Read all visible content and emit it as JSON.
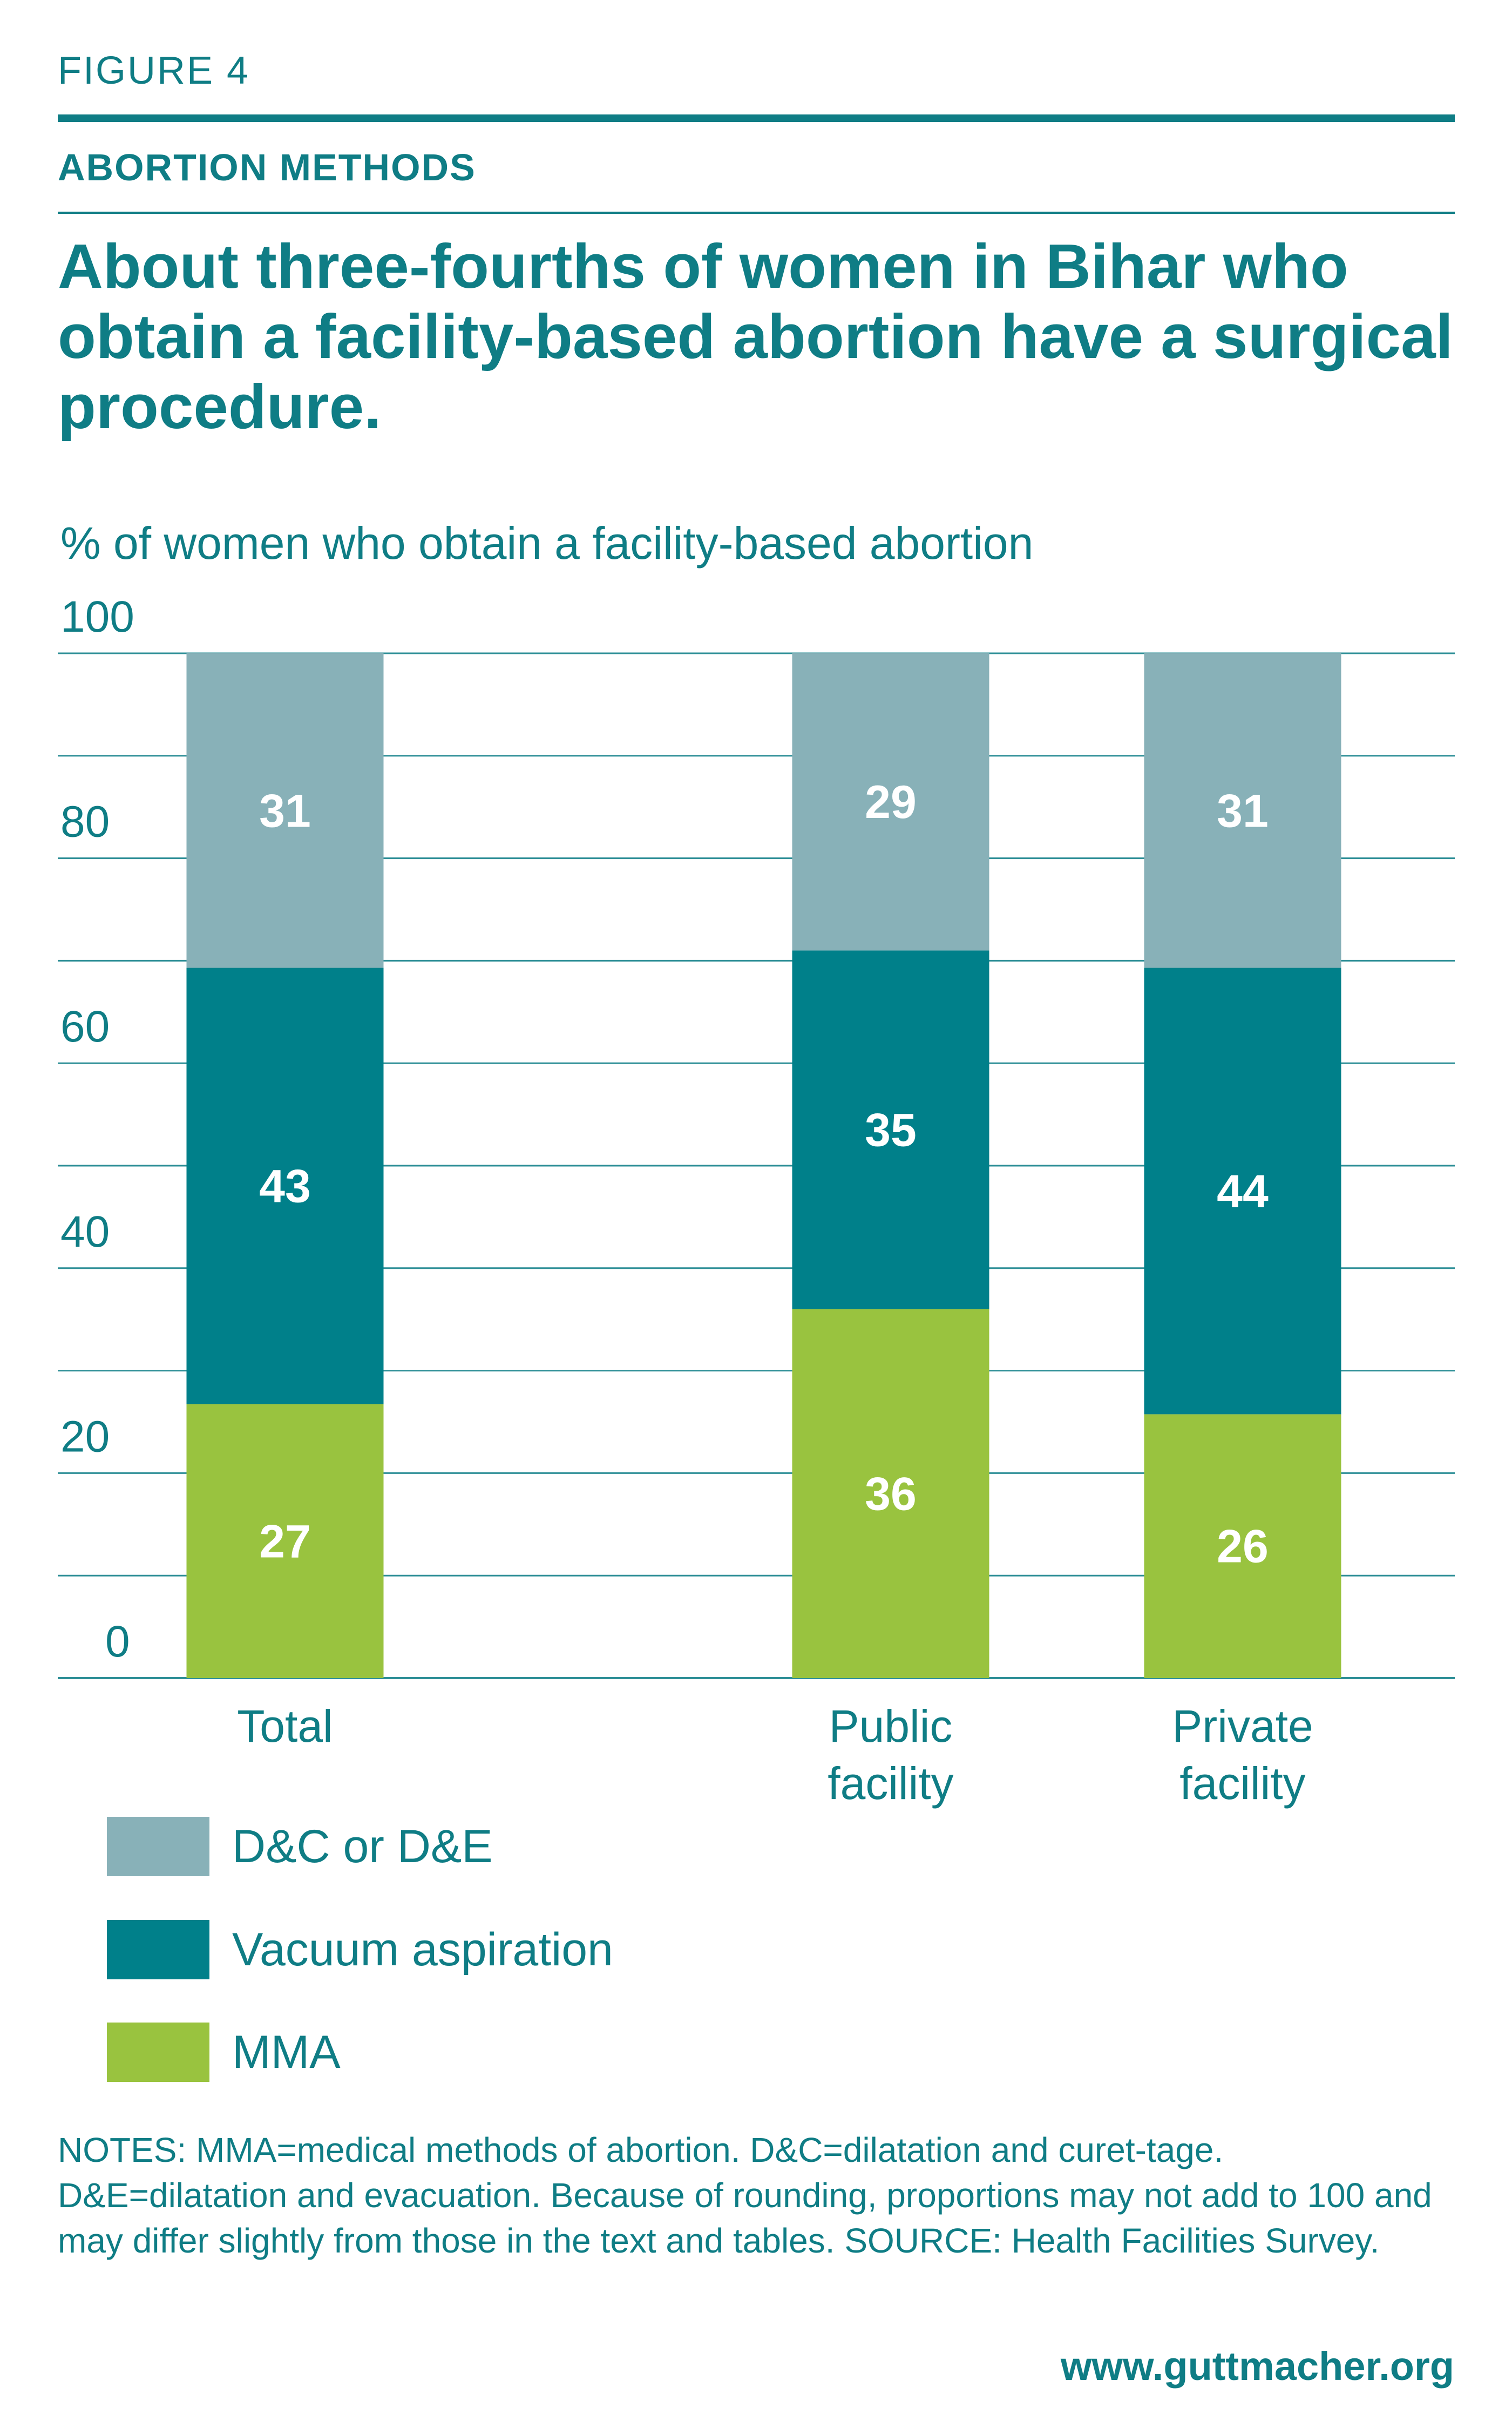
{
  "header": {
    "figure_label": "FIGURE 4",
    "section_title": "ABORTION METHODS",
    "headline": "About three-fourths of women in Bihar who obtain a facility-based abortion have a surgical procedure."
  },
  "chart_data": {
    "type": "bar",
    "stacked": true,
    "ylabel": "% of women who obtain a facility-based abortion",
    "ylim": [
      0,
      100
    ],
    "yticks": [
      0,
      20,
      40,
      60,
      80,
      100
    ],
    "grid": true,
    "categories": [
      "Total",
      "Public facility",
      "Private facility"
    ],
    "category_lines": [
      [
        "Total"
      ],
      [
        "Public",
        "facility"
      ],
      [
        "Private",
        "facility"
      ]
    ],
    "series": [
      {
        "name": "MMA",
        "color": "#99c33f",
        "values": [
          27,
          36,
          26
        ]
      },
      {
        "name": "Vacuum aspiration",
        "color": "#00808a",
        "values": [
          43,
          35,
          44
        ]
      },
      {
        "name": "D&C or D&E",
        "color": "#88b1b8",
        "values": [
          31,
          29,
          31
        ]
      }
    ],
    "legend_position": "bottom-left"
  },
  "legend": [
    {
      "label": "D&C or D&E",
      "color": "#88b1b8"
    },
    {
      "label": "Vacuum aspiration",
      "color": "#00808a"
    },
    {
      "label": "MMA",
      "color": "#99c33f"
    }
  ],
  "notes": "NOTES: MMA=medical methods of abortion. D&C=dilatation and curet-tage. D&E=dilatation and evacuation. Because of rounding, proportions may not add to 100 and may differ slightly from those in the text and tables. SOURCE: Health Facilities Survey.",
  "site": "www.guttmacher.org"
}
